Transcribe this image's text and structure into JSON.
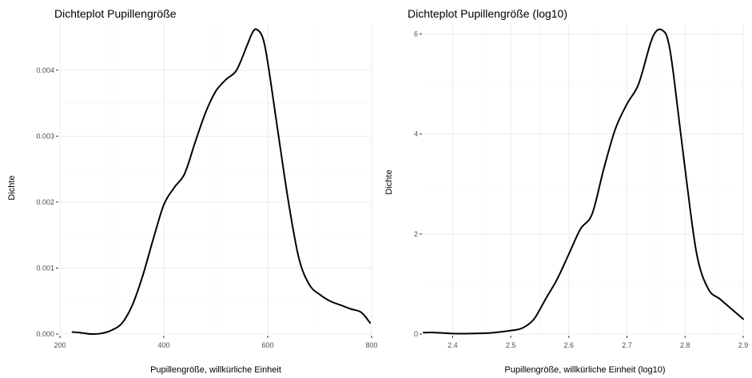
{
  "chart_data": [
    {
      "type": "line",
      "title": "Dichteplot Pupillengröße",
      "xlabel": "Pupillengröße, willkürliche Einheit",
      "ylabel": "Dichte",
      "xlim": [
        200,
        800
      ],
      "ylim": [
        0,
        0.0047
      ],
      "x_ticks": [
        200,
        400,
        600,
        800
      ],
      "y_ticks": [
        0.0,
        0.001,
        0.002,
        0.003,
        0.004
      ],
      "y_tick_labels": [
        "0.000",
        "0.001",
        "0.002",
        "0.003",
        "0.004"
      ],
      "grid": true,
      "series": [
        {
          "x": [
            224,
            240,
            260,
            280,
            300,
            320,
            340,
            360,
            380,
            400,
            420,
            440,
            460,
            480,
            500,
            520,
            540,
            560,
            570,
            578,
            590,
            600,
            620,
            640,
            660,
            680,
            700,
            720,
            740,
            760,
            780,
            797
          ],
          "y": [
            3e-05,
            2e-05,
            0.0,
            1e-05,
            6e-05,
            0.00017,
            0.00045,
            0.0009,
            0.00145,
            0.00196,
            0.00222,
            0.00243,
            0.0029,
            0.00335,
            0.00368,
            0.00386,
            0.004,
            0.00437,
            0.00456,
            0.00462,
            0.0045,
            0.00412,
            0.00305,
            0.002,
            0.00115,
            0.00075,
            0.0006,
            0.0005,
            0.00044,
            0.00038,
            0.00033,
            0.00017
          ]
        }
      ]
    },
    {
      "type": "line",
      "title": "Dichteplot Pupillengröße (log10)",
      "xlabel": "Pupillengröße, willkürliche Einheit (log10)",
      "ylabel": "Dichte",
      "xlim": [
        2.35,
        2.9
      ],
      "ylim": [
        0,
        6.2
      ],
      "x_ticks": [
        2.4,
        2.5,
        2.6,
        2.7,
        2.8,
        2.9
      ],
      "x_tick_labels": [
        "2.4",
        "2.5",
        "2.6",
        "2.7",
        "2.8",
        "2.9"
      ],
      "y_ticks": [
        0,
        2,
        4,
        6
      ],
      "y_tick_labels": [
        "0",
        "2",
        "4",
        "6"
      ],
      "grid": true,
      "series": [
        {
          "x": [
            2.35,
            2.37,
            2.4,
            2.43,
            2.46,
            2.48,
            2.5,
            2.52,
            2.54,
            2.56,
            2.58,
            2.6,
            2.62,
            2.64,
            2.66,
            2.68,
            2.7,
            2.72,
            2.74,
            2.75,
            2.76,
            2.77,
            2.78,
            2.8,
            2.82,
            2.84,
            2.86,
            2.88,
            2.9
          ],
          "y": [
            0.03,
            0.03,
            0.01,
            0.01,
            0.02,
            0.04,
            0.07,
            0.12,
            0.3,
            0.7,
            1.1,
            1.6,
            2.1,
            2.4,
            3.3,
            4.1,
            4.6,
            5.0,
            5.8,
            6.05,
            6.08,
            5.9,
            5.2,
            3.3,
            1.6,
            0.9,
            0.7,
            0.5,
            0.3
          ]
        }
      ]
    }
  ]
}
